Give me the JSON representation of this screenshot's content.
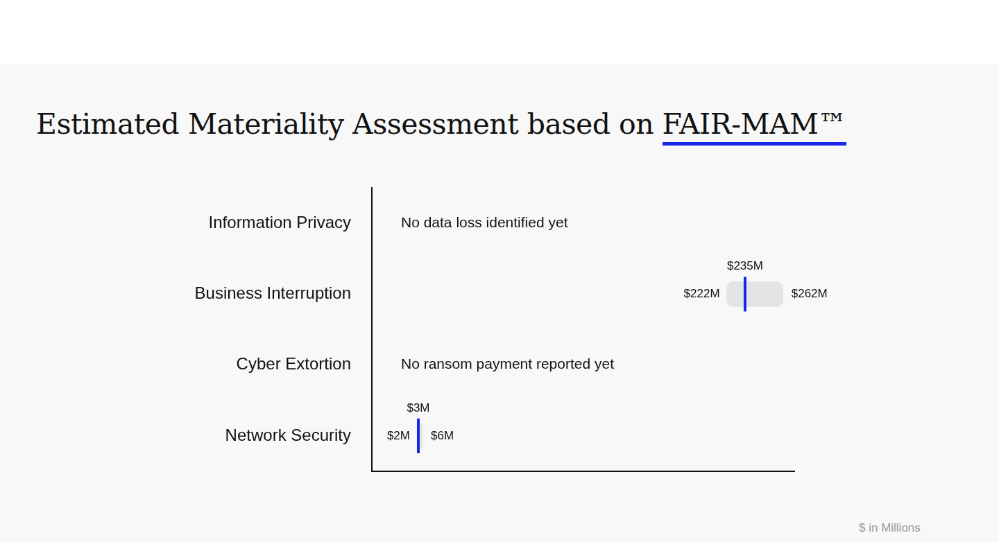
{
  "chart_data": {
    "type": "range_bar",
    "orientation": "horizontal",
    "title": "Estimated Materiality Assessment based on",
    "title_link": "FAIR-MAM™",
    "units_note": "$ in Millions",
    "categories": [
      "Information Privacy",
      "Business Interruption",
      "Cyber Extortion",
      "Network Security"
    ],
    "values": [
      null,
      235,
      null,
      3
    ],
    "value_labels": [
      null,
      "$235M",
      null,
      "$3M"
    ],
    "low": [
      null,
      222,
      null,
      2
    ],
    "low_labels": [
      null,
      "$222M",
      null,
      "$2M"
    ],
    "high": [
      null,
      262,
      null,
      6
    ],
    "high_labels": [
      null,
      "$262M",
      null,
      "$6M"
    ],
    "notes": [
      "No data loss identified yet",
      null,
      "No ransom payment reported yet",
      null
    ],
    "color": "#1428e6",
    "xlim": [
      -30,
      270
    ],
    "tick_labels": "y",
    "grid": false,
    "data_labels": true
  }
}
